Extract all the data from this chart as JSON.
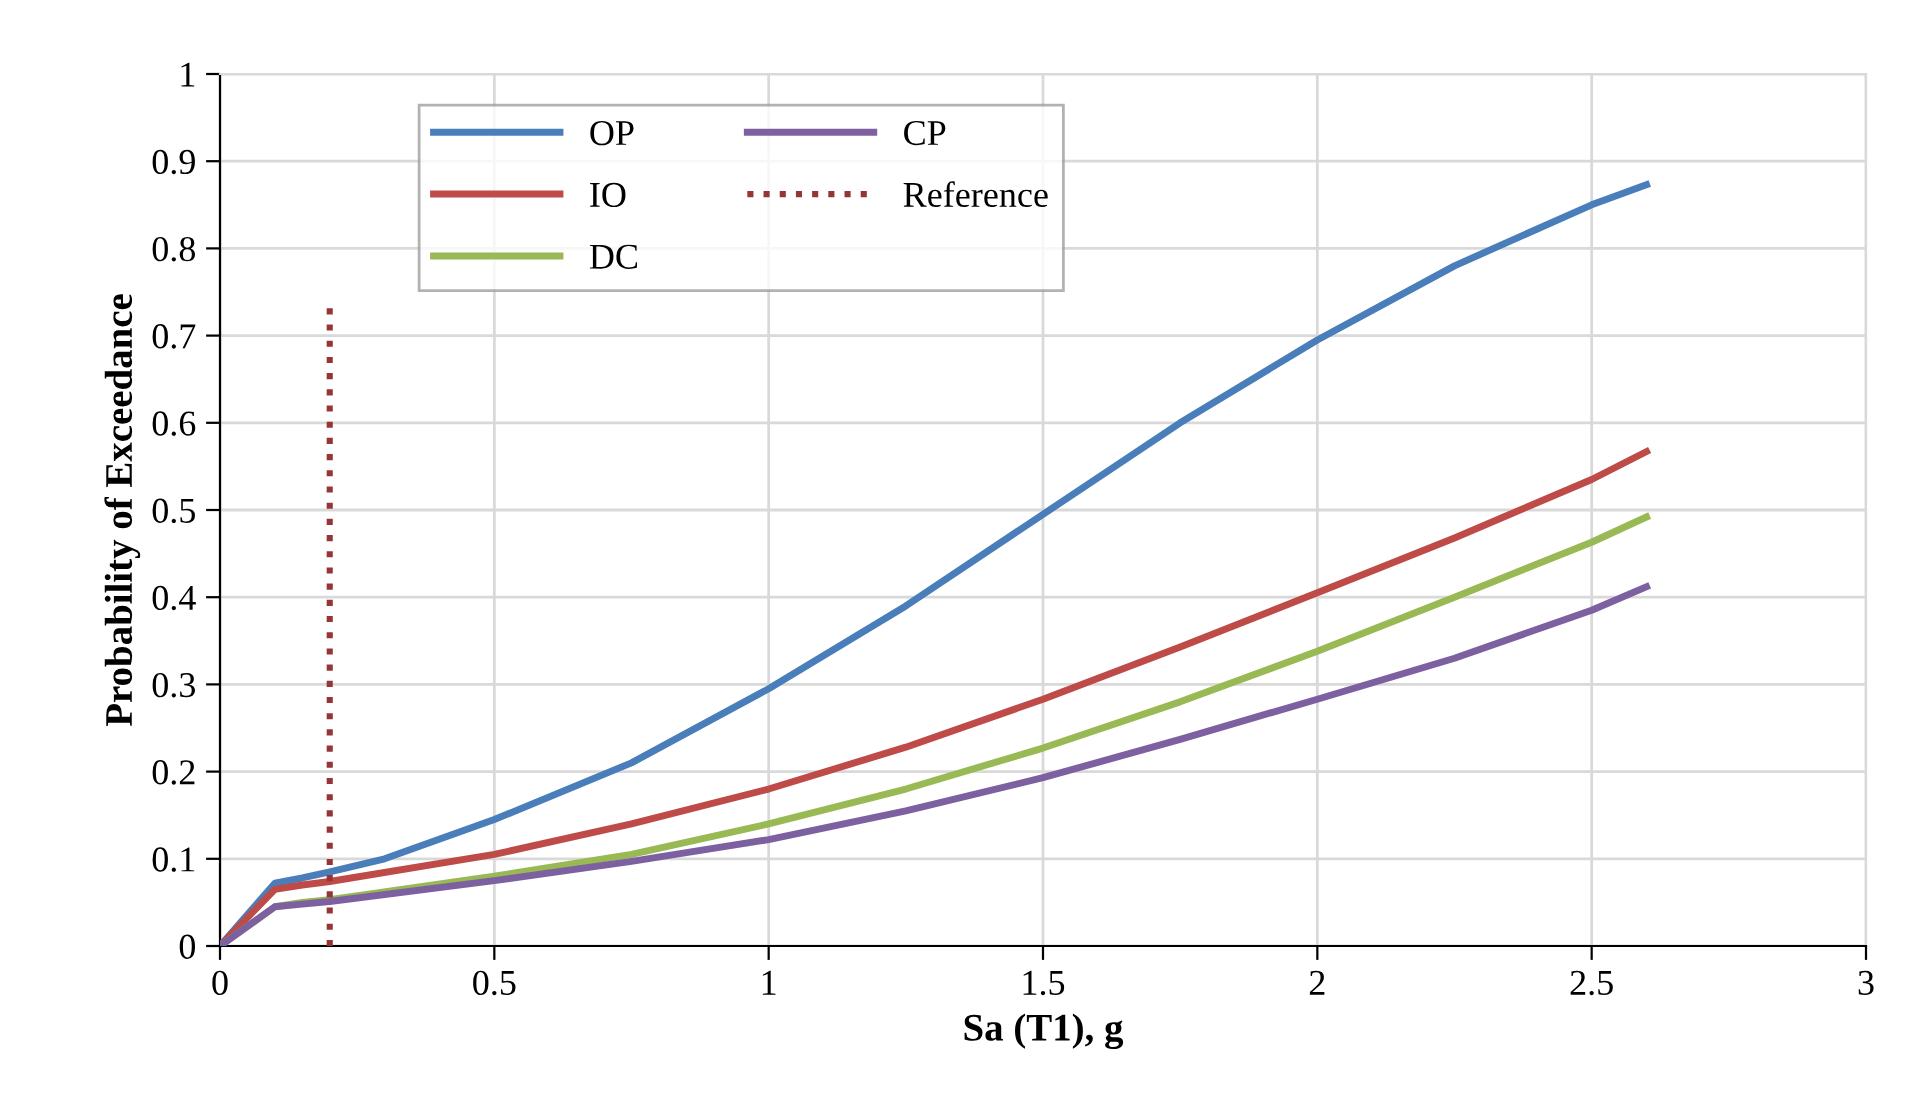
{
  "chart_data": {
    "type": "line",
    "xlabel": "Sa (T1), g",
    "ylabel": "Probability of Exceedance",
    "xlim": [
      0,
      3
    ],
    "xticks": [
      0,
      0.5,
      1,
      1.5,
      2,
      2.5,
      3
    ],
    "ylim": [
      0,
      1
    ],
    "yticks": [
      0,
      0.1,
      0.2,
      0.3,
      0.4,
      0.5,
      0.6,
      0.7,
      0.8,
      0.9,
      1
    ],
    "grid": true,
    "legend": "top left",
    "marker": "none",
    "series": [
      {
        "name": "OP",
        "color": "#4a7ebb",
        "x": [
          0,
          0.1,
          0.15,
          0.2,
          0.3,
          0.5,
          0.75,
          1.0,
          1.25,
          1.5,
          1.75,
          2.0,
          2.25,
          2.5,
          2.6
        ],
        "values": [
          0,
          0.072,
          0.078,
          0.085,
          0.1,
          0.145,
          0.21,
          0.295,
          0.39,
          0.495,
          0.6,
          0.695,
          0.78,
          0.85,
          0.873
        ]
      },
      {
        "name": "IO",
        "color": "#be4b48",
        "x": [
          0,
          0.1,
          0.15,
          0.2,
          0.5,
          0.75,
          1.0,
          1.25,
          1.5,
          1.75,
          2.0,
          2.25,
          2.5,
          2.6
        ],
        "values": [
          0,
          0.065,
          0.07,
          0.074,
          0.105,
          0.14,
          0.18,
          0.228,
          0.283,
          0.343,
          0.405,
          0.468,
          0.535,
          0.567
        ]
      },
      {
        "name": "DC",
        "color": "#98b954",
        "x": [
          0,
          0.1,
          0.15,
          0.2,
          0.5,
          0.75,
          1.0,
          1.25,
          1.5,
          1.75,
          2.0,
          2.25,
          2.5,
          2.6
        ],
        "values": [
          0,
          0.045,
          0.05,
          0.053,
          0.08,
          0.105,
          0.14,
          0.18,
          0.227,
          0.28,
          0.338,
          0.4,
          0.463,
          0.492
        ]
      },
      {
        "name": "CP",
        "color": "#7d60a0",
        "x": [
          0,
          0.1,
          0.15,
          0.2,
          0.5,
          0.75,
          1.0,
          1.25,
          1.5,
          1.75,
          2.0,
          2.25,
          2.5,
          2.6
        ],
        "values": [
          0,
          0.045,
          0.048,
          0.051,
          0.075,
          0.097,
          0.122,
          0.155,
          0.193,
          0.237,
          0.283,
          0.33,
          0.385,
          0.412
        ]
      },
      {
        "name": "Reference",
        "color": "#943634",
        "line_style": "dotted",
        "x": [
          0.2,
          0.2
        ],
        "values": [
          0,
          0.74
        ]
      }
    ]
  }
}
